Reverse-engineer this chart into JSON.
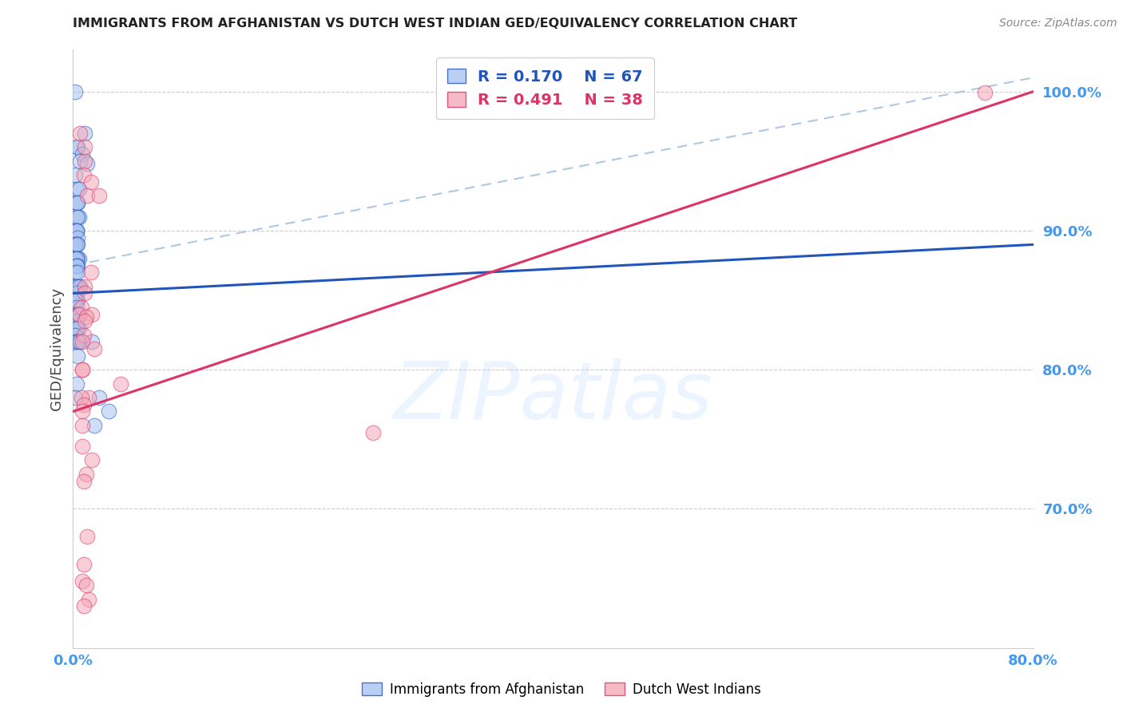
{
  "title": "IMMIGRANTS FROM AFGHANISTAN VS DUTCH WEST INDIAN GED/EQUIVALENCY CORRELATION CHART",
  "source": "Source: ZipAtlas.com",
  "ylabel": "GED/Equivalency",
  "legend_blue_r": "R = 0.170",
  "legend_blue_n": "N = 67",
  "legend_pink_r": "R = 0.491",
  "legend_pink_n": "N = 38",
  "legend_blue_label": "Immigrants from Afghanistan",
  "legend_pink_label": "Dutch West Indians",
  "blue_color": "#a8c4f0",
  "pink_color": "#f4a8b8",
  "blue_line_color": "#2255bb",
  "pink_line_color": "#dd3366",
  "axis_label_color": "#4499ee",
  "watermark": "ZIPatlas",
  "blue_scatter_x": [
    0.002,
    0.01,
    0.004,
    0.003,
    0.008,
    0.006,
    0.012,
    0.002,
    0.003,
    0.005,
    0.004,
    0.003,
    0.004,
    0.005,
    0.003,
    0.004,
    0.003,
    0.002,
    0.003,
    0.003,
    0.004,
    0.003,
    0.003,
    0.002,
    0.004,
    0.003,
    0.005,
    0.004,
    0.002,
    0.003,
    0.004,
    0.003,
    0.003,
    0.002,
    0.004,
    0.003,
    0.002,
    0.006,
    0.003,
    0.005,
    0.003,
    0.004,
    0.003,
    0.002,
    0.003,
    0.004,
    0.003,
    0.002,
    0.004,
    0.005,
    0.003,
    0.004,
    0.005,
    0.003,
    0.002,
    0.003,
    0.004,
    0.005,
    0.003,
    0.006,
    0.016,
    0.004,
    0.003,
    0.002,
    0.022,
    0.03,
    0.018
  ],
  "blue_scatter_y": [
    1.0,
    0.97,
    0.96,
    0.96,
    0.955,
    0.95,
    0.948,
    0.94,
    0.93,
    0.93,
    0.92,
    0.92,
    0.92,
    0.91,
    0.91,
    0.91,
    0.9,
    0.9,
    0.9,
    0.9,
    0.895,
    0.89,
    0.89,
    0.89,
    0.89,
    0.88,
    0.88,
    0.88,
    0.88,
    0.88,
    0.875,
    0.875,
    0.875,
    0.87,
    0.87,
    0.86,
    0.86,
    0.86,
    0.86,
    0.86,
    0.855,
    0.85,
    0.85,
    0.85,
    0.845,
    0.84,
    0.84,
    0.84,
    0.84,
    0.84,
    0.835,
    0.83,
    0.83,
    0.83,
    0.825,
    0.82,
    0.82,
    0.82,
    0.82,
    0.82,
    0.82,
    0.81,
    0.79,
    0.78,
    0.78,
    0.77,
    0.76
  ],
  "pink_scatter_x": [
    0.76,
    0.006,
    0.01,
    0.01,
    0.009,
    0.015,
    0.012,
    0.022,
    0.015,
    0.01,
    0.01,
    0.007,
    0.005,
    0.016,
    0.011,
    0.01,
    0.009,
    0.008,
    0.018,
    0.008,
    0.008,
    0.04,
    0.013,
    0.007,
    0.009,
    0.008,
    0.008,
    0.25,
    0.008,
    0.016,
    0.011,
    0.009,
    0.012,
    0.009,
    0.008,
    0.011,
    0.013,
    0.009
  ],
  "pink_scatter_y": [
    0.999,
    0.97,
    0.96,
    0.95,
    0.94,
    0.935,
    0.925,
    0.925,
    0.87,
    0.86,
    0.855,
    0.845,
    0.84,
    0.84,
    0.838,
    0.835,
    0.825,
    0.82,
    0.815,
    0.8,
    0.8,
    0.79,
    0.78,
    0.78,
    0.775,
    0.77,
    0.76,
    0.755,
    0.745,
    0.735,
    0.725,
    0.72,
    0.68,
    0.66,
    0.648,
    0.645,
    0.635,
    0.63
  ],
  "xlim": [
    0.0,
    0.8
  ],
  "ylim": [
    0.6,
    1.03
  ],
  "blue_line_x0": 0.0,
  "blue_line_x1": 0.8,
  "blue_line_y0": 0.855,
  "blue_line_y1": 0.89,
  "pink_line_x0": 0.0,
  "pink_line_x1": 0.8,
  "pink_line_y0": 0.77,
  "pink_line_y1": 1.0,
  "dash_line_x0": 0.0,
  "dash_line_x1": 0.8,
  "dash_line_y0": 0.875,
  "dash_line_y1": 1.01
}
